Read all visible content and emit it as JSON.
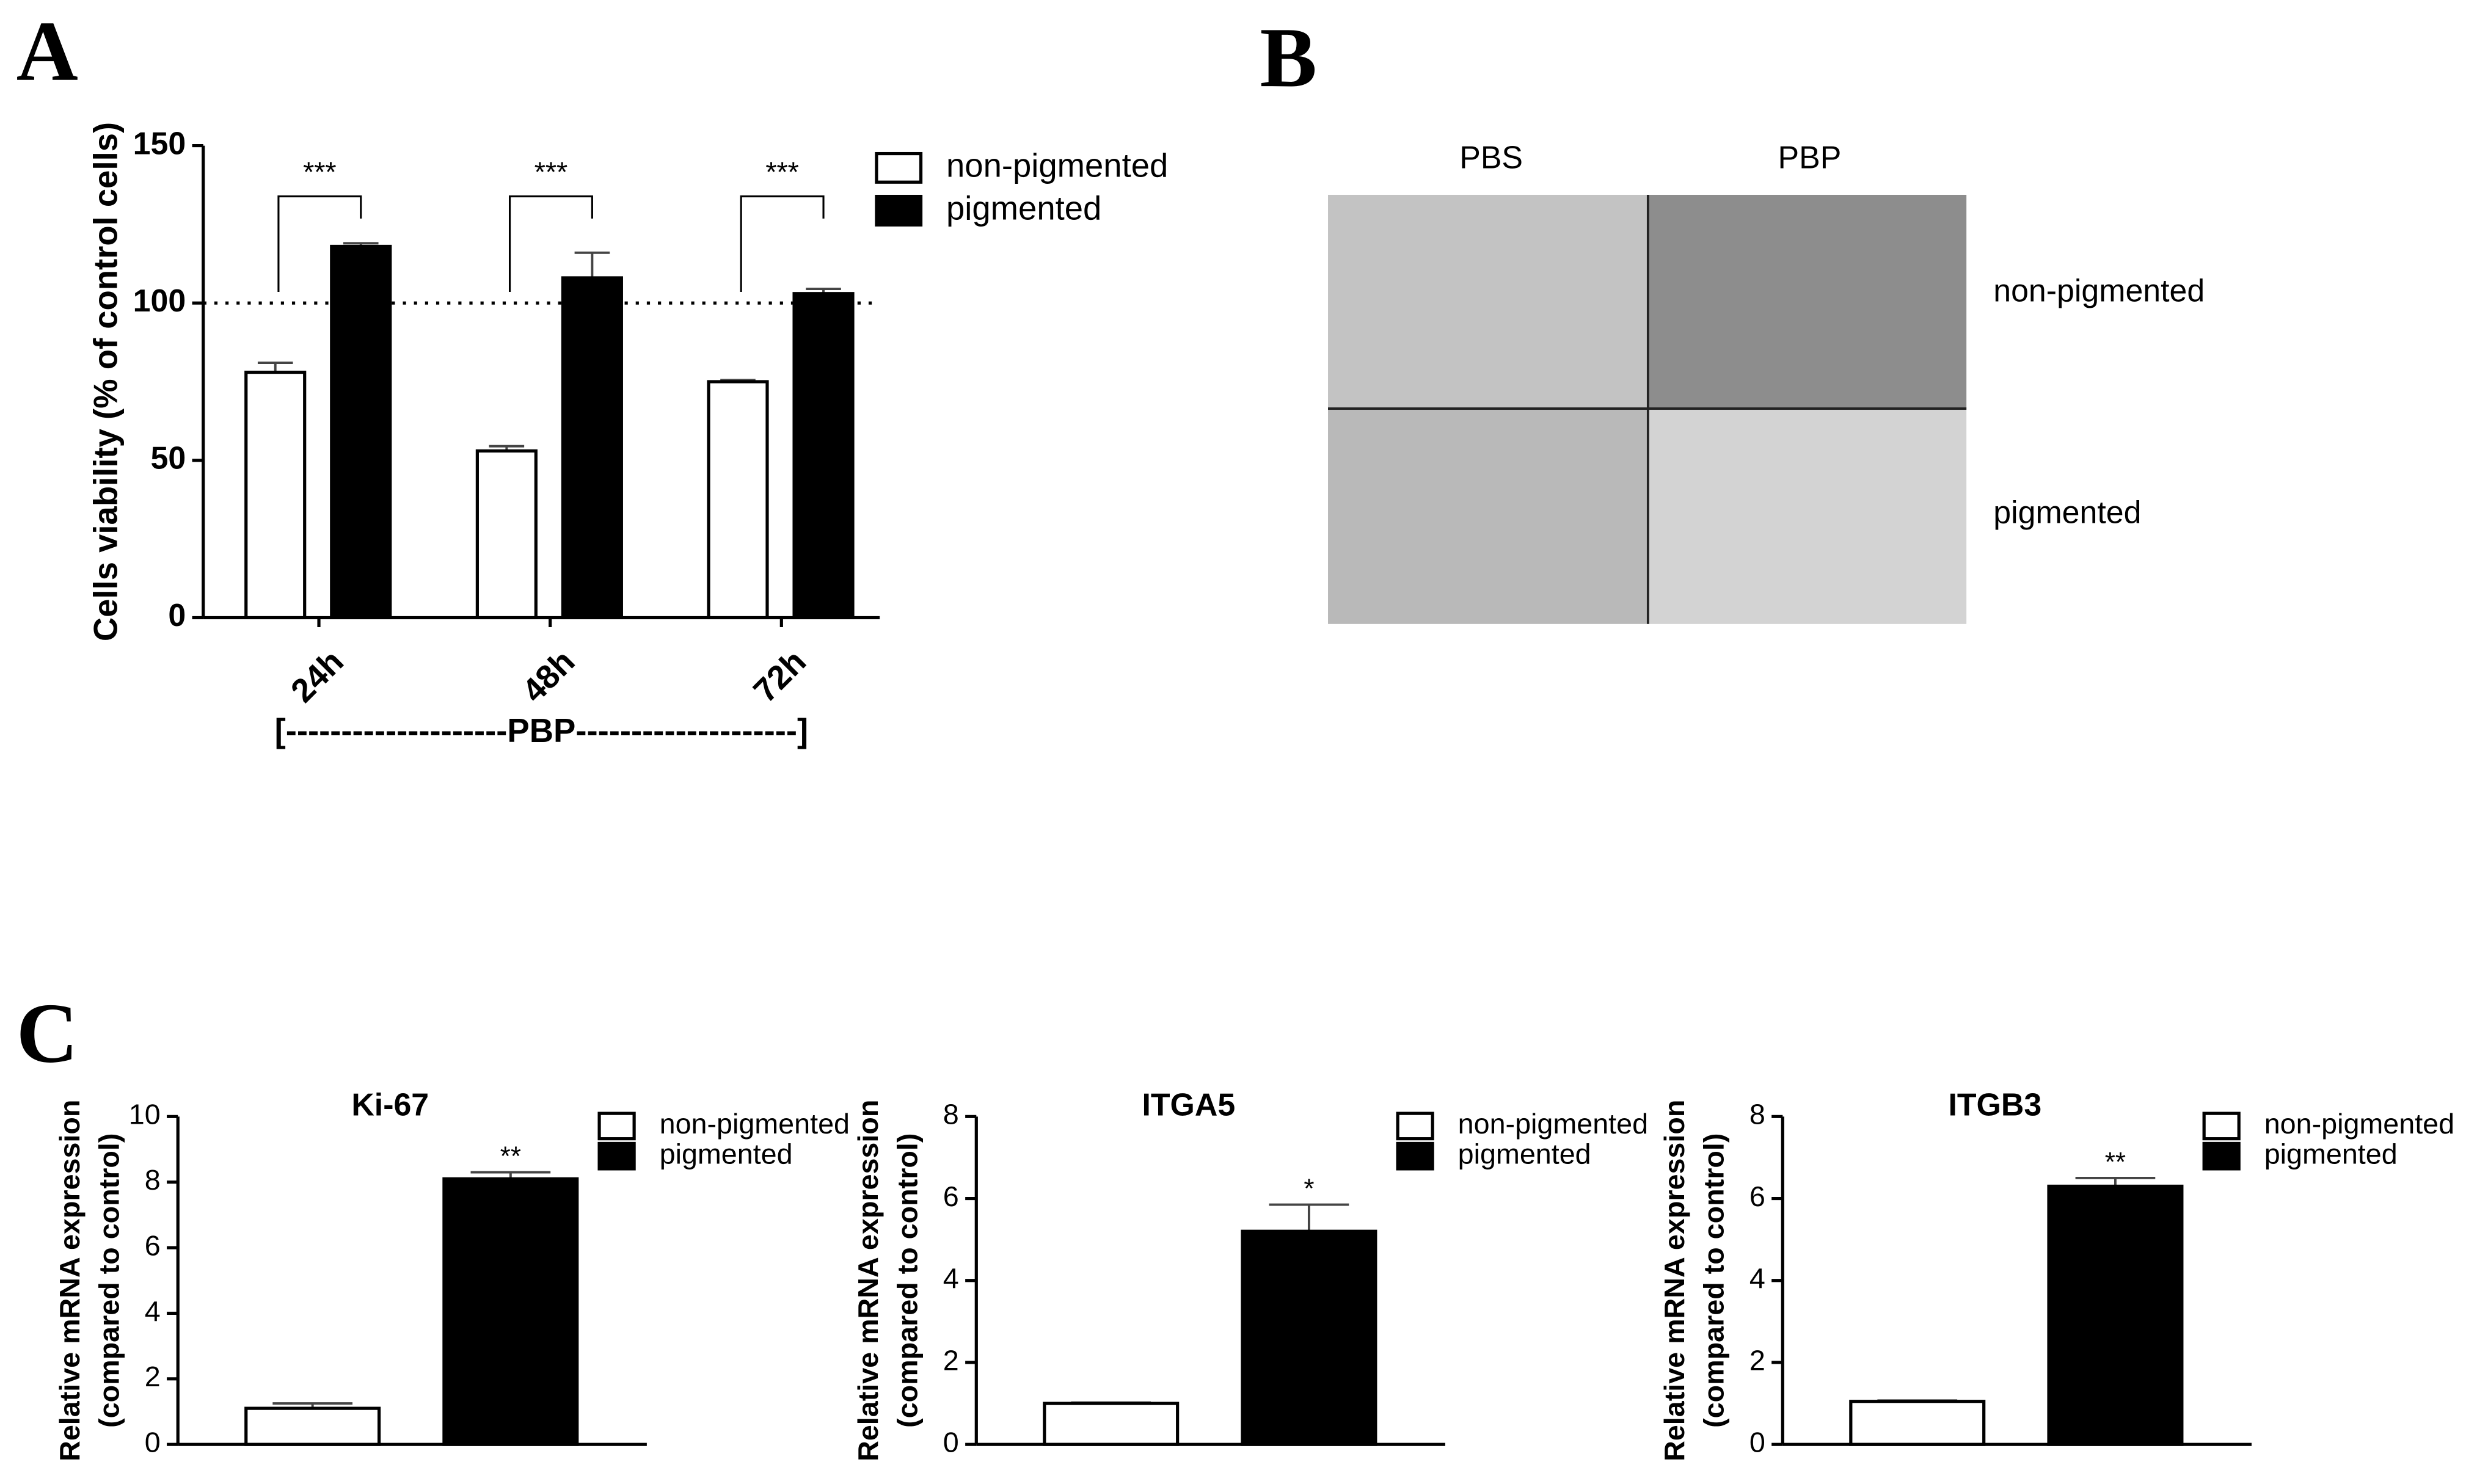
{
  "chart_data": [
    {
      "type": "bar",
      "panel_label": "A",
      "y_label": "Cells viability (% of control cells)",
      "x_label": "[--------------------PBP--------------------]",
      "categories": [
        "24h",
        "48h",
        "72h"
      ],
      "series": [
        {
          "name": "non-pigmented",
          "color": "#ffffff",
          "values": [
            78,
            53,
            75
          ],
          "errors": [
            3,
            1.5,
            0.5
          ]
        },
        {
          "name": "pigmented",
          "color": "#000000",
          "values": [
            118,
            108,
            103
          ],
          "errors": [
            1,
            8,
            1.5
          ]
        }
      ],
      "ylim": [
        0,
        150
      ],
      "yticks": [
        0,
        50,
        100,
        150
      ],
      "grid": false,
      "reference_line": 100,
      "annotations": [
        "***",
        "***",
        "***"
      ]
    },
    {
      "type": "bar",
      "panel_label": "C",
      "title": "Ki-67",
      "y_label": [
        "Relative mRNA expression",
        "(compared to control)"
      ],
      "series": [
        {
          "name": "non-pigmented",
          "color": "#ffffff",
          "values": [
            1.1
          ],
          "errors": [
            0.15
          ]
        },
        {
          "name": "pigmented",
          "color": "#000000",
          "values": [
            8.1
          ],
          "errors": [
            0.2
          ]
        }
      ],
      "ylim": [
        0,
        10
      ],
      "yticks": [
        0,
        2,
        4,
        6,
        8,
        10
      ],
      "grid": false,
      "annotation": "**"
    },
    {
      "type": "bar",
      "title": "ITGA5",
      "y_label": [
        "Relative mRNA expression",
        "(compared to control)"
      ],
      "series": [
        {
          "name": "non-pigmented",
          "color": "#ffffff",
          "values": [
            1.0
          ],
          "errors": [
            0.02
          ]
        },
        {
          "name": "pigmented",
          "color": "#000000",
          "values": [
            5.2
          ],
          "errors": [
            0.65
          ]
        }
      ],
      "ylim": [
        0,
        8
      ],
      "yticks": [
        0,
        2,
        4,
        6,
        8
      ],
      "grid": false,
      "annotation": "*"
    },
    {
      "type": "bar",
      "title": "ITGB3",
      "y_label": [
        "Relative mRNA expression",
        "(compared to control)"
      ],
      "series": [
        {
          "name": "non-pigmented",
          "color": "#ffffff",
          "values": [
            1.05
          ],
          "errors": [
            0.02
          ]
        },
        {
          "name": "pigmented",
          "color": "#000000",
          "values": [
            6.3
          ],
          "errors": [
            0.2
          ]
        }
      ],
      "ylim": [
        0,
        8
      ],
      "yticks": [
        0,
        2,
        4,
        6,
        8
      ],
      "grid": false,
      "annotation": "**"
    }
  ],
  "image_panel": {
    "label": "B",
    "columns": [
      "PBS",
      "PBP"
    ],
    "rows": [
      "non-pigmented",
      "pigmented"
    ]
  }
}
